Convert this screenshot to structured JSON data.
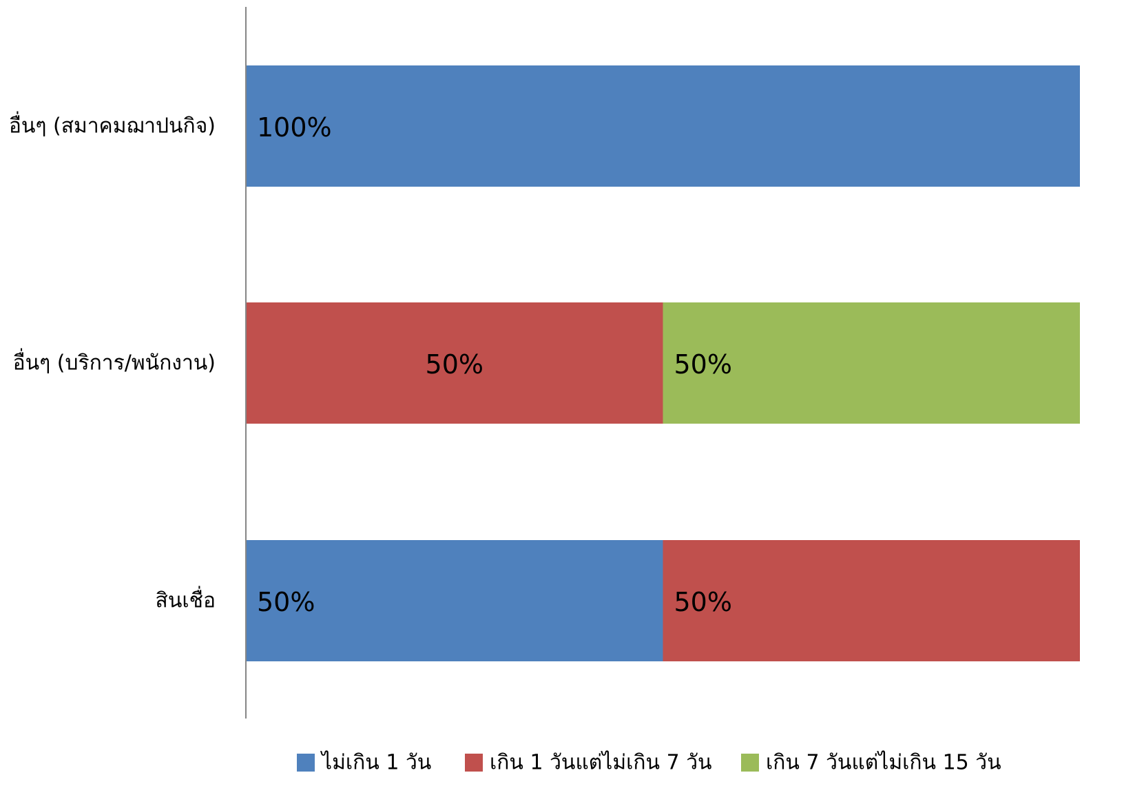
{
  "chart_data": {
    "type": "bar",
    "orientation": "horizontal",
    "stacked": "percent",
    "categories": [
      "อื่นๆ (สมาคมฌาปนกิจ)",
      "อื่นๆ (บริการ/พนักงาน)",
      "สินเชื่อ"
    ],
    "series": [
      {
        "name": "ไม่เกิน 1 วัน",
        "color": "#4F81BD",
        "values": [
          100,
          0,
          50
        ]
      },
      {
        "name": "เกิน 1 วันแต่ไม่เกิน 7 วัน",
        "color": "#C0504D",
        "values": [
          0,
          50,
          50
        ]
      },
      {
        "name": "เกิน 7 วันแต่ไม่เกิน 15 วัน",
        "color": "#9BBB59",
        "values": [
          0,
          50,
          0
        ]
      }
    ],
    "data_labels": [
      [
        "100%",
        "",
        "50%"
      ],
      [
        "",
        "50%",
        "50%"
      ],
      [
        "",
        "50%",
        ""
      ]
    ],
    "xlim": [
      0,
      100
    ],
    "grid": false,
    "legend_position": "bottom",
    "title": "",
    "xlabel": "",
    "ylabel": ""
  }
}
